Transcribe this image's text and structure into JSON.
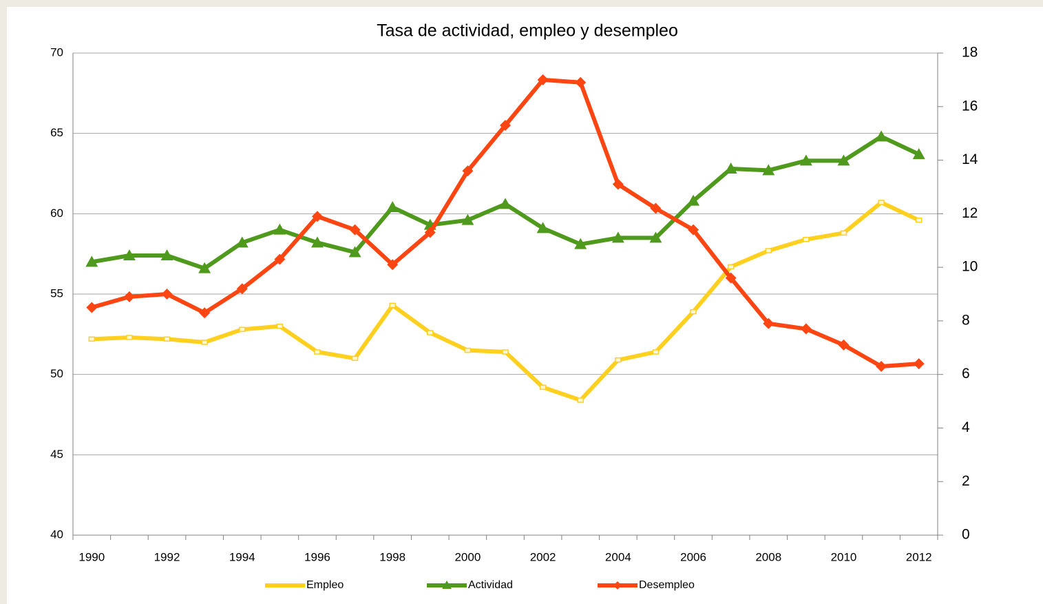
{
  "chart_data": {
    "type": "line",
    "title": "Tasa de actividad, empleo y desempleo",
    "categories": [
      "1990",
      null,
      "1992",
      null,
      "1994",
      null,
      "1996",
      null,
      "1998",
      null,
      "2000",
      null,
      "2002",
      null,
      "2004",
      null,
      "2006",
      null,
      "2008",
      null,
      "2010",
      null,
      "2012"
    ],
    "series": [
      {
        "name": "Empleo",
        "color": "#ffd020",
        "marker": "square",
        "values": [
          52.2,
          52.3,
          52.2,
          52.0,
          52.8,
          53.0,
          51.4,
          51.0,
          54.3,
          52.6,
          51.5,
          51.4,
          49.2,
          48.4,
          50.9,
          51.4,
          53.9,
          56.7,
          57.7,
          58.4,
          58.8,
          60.7,
          59.6
        ]
      },
      {
        "name": "Actividad",
        "color": "#4f9a1c",
        "marker": "triangle",
        "values": [
          57.0,
          57.4,
          57.4,
          56.6,
          58.2,
          59.0,
          58.2,
          57.6,
          60.4,
          59.3,
          59.6,
          60.6,
          59.1,
          58.1,
          58.5,
          58.5,
          60.8,
          62.8,
          62.7,
          63.3,
          63.3,
          64.8,
          63.7
        ]
      },
      {
        "name": "Desempleo",
        "color": "#ff4512",
        "marker": "diamond",
        "axis": "y2",
        "values": [
          8.5,
          8.9,
          9.0,
          8.3,
          9.2,
          10.3,
          11.9,
          11.4,
          10.1,
          11.3,
          13.6,
          15.3,
          17.0,
          16.9,
          13.1,
          12.2,
          11.4,
          9.6,
          7.9,
          7.7,
          7.1,
          6.3,
          6.4
        ]
      }
    ],
    "ylim": [
      40,
      70
    ],
    "yticks": [
      40,
      45,
      50,
      55,
      60,
      65,
      70
    ],
    "y2lim": [
      0,
      18
    ],
    "y2ticks": [
      0,
      2,
      4,
      6,
      8,
      10,
      12,
      14,
      16,
      18
    ],
    "grid": true,
    "legend": "bottom"
  }
}
